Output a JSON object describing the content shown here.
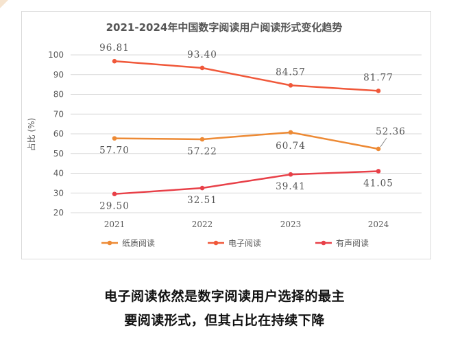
{
  "chart_data": {
    "type": "line",
    "title": "2021-2024年中国数字阅读用户阅读形式变化趋势",
    "ylabel": "占比 (%)",
    "xlabel": "",
    "x": [
      "2021",
      "2022",
      "2023",
      "2024"
    ],
    "ylim": [
      20,
      100
    ],
    "yticks": [
      "20",
      "30",
      "40",
      "50",
      "60",
      "70",
      "80",
      "90",
      "100"
    ],
    "grid": true,
    "legend_position": "bottom",
    "series": [
      {
        "name": "纸质阅读",
        "color": "#ed8a35",
        "values": [
          57.7,
          57.22,
          60.74,
          52.36
        ],
        "labels": [
          "57.70",
          "57.22",
          "60.74",
          "52.36"
        ]
      },
      {
        "name": "电子阅读",
        "color": "#f0583a",
        "values": [
          96.81,
          93.4,
          84.57,
          81.77
        ],
        "labels": [
          "96.81",
          "93.40",
          "84.57",
          "81.77"
        ]
      },
      {
        "name": "有声阅读",
        "color": "#e84048",
        "values": [
          29.5,
          32.51,
          39.41,
          41.05
        ],
        "labels": [
          "29.50",
          "32.51",
          "39.41",
          "41.05"
        ]
      }
    ]
  },
  "caption": {
    "line1": "电子阅读依然是数字阅读用户选择的最主",
    "line2": "要阅读形式，但其占比在持续下降"
  }
}
